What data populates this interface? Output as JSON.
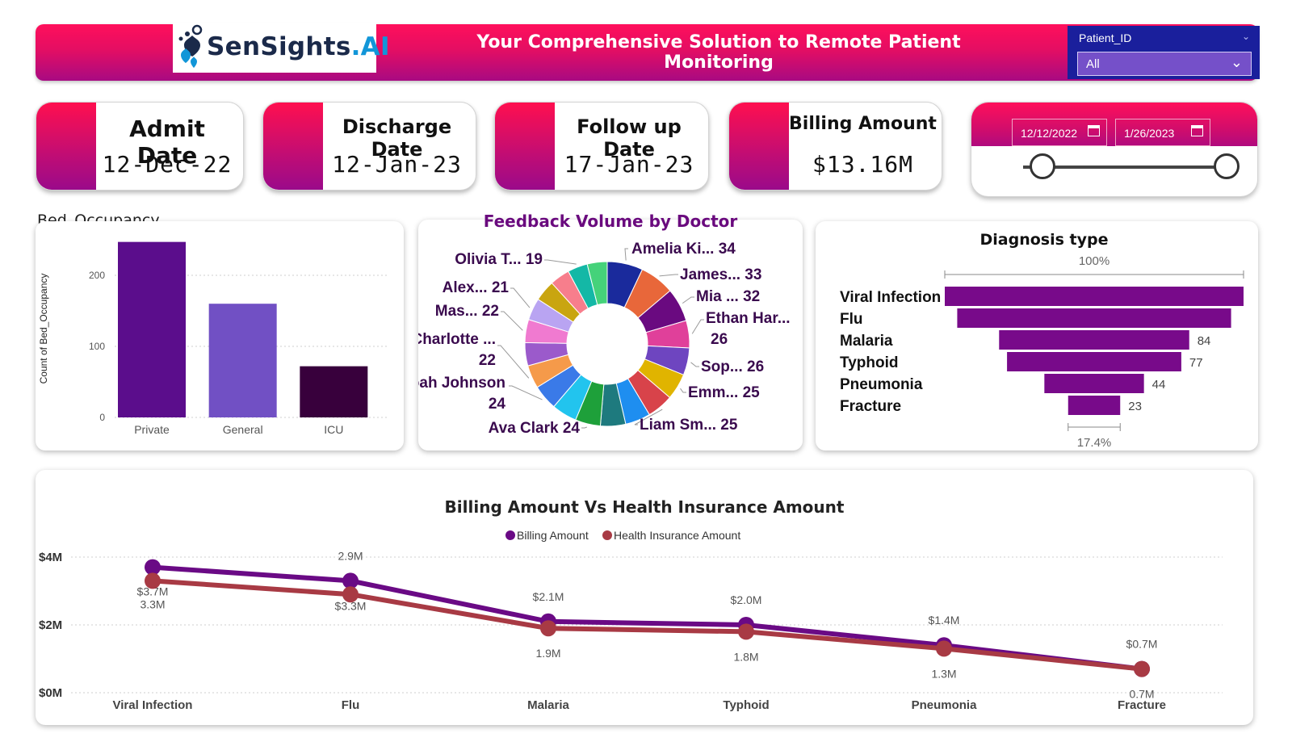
{
  "header": {
    "logo_main": "SenSights",
    "logo_suffix": ".AI",
    "tagline": "Your Comprehensive Solution to Remote Patient Monitoring",
    "brand_colors": {
      "pink": "#ff0f5b",
      "magenta": "#a80a82",
      "navy": "#1a1f9c"
    }
  },
  "filter": {
    "label": "Patient_ID",
    "value": "All"
  },
  "kpis": [
    {
      "title": "Admit Date",
      "value": "12-Dec-22"
    },
    {
      "title": "Discharge Date",
      "value": "12-Jan-23"
    },
    {
      "title": "Follow up Date",
      "value": "17-Jan-23"
    },
    {
      "title": "Billing Amount",
      "value": "$13.16M"
    }
  ],
  "date_slicer": {
    "start": "12/12/2022",
    "end": "1/26/2023",
    "range_fraction": [
      0.0,
      1.0
    ]
  },
  "chart_data": [
    {
      "type": "bar",
      "title": "Bed_Occupancy",
      "ylabel": "Count of Bed_Occupancy",
      "xlabel": "",
      "categories": [
        "Private",
        "General",
        "ICU"
      ],
      "values": [
        247,
        160,
        72
      ],
      "colors": [
        "#5b0d8c",
        "#7150c4",
        "#38003c"
      ],
      "ylim": [
        0,
        250
      ],
      "yticks": [
        0,
        100,
        200
      ],
      "grid": true
    },
    {
      "type": "pie",
      "title": "Feedback Volume by Doctor",
      "donut": true,
      "slices": [
        {
          "label": "Amelia Ki...",
          "value": 34,
          "color": "#1a2a9c"
        },
        {
          "label": "James...",
          "value": 33,
          "color": "#e8673a"
        },
        {
          "label": "Mia ...",
          "value": 32,
          "color": "#6a0a80"
        },
        {
          "label": "Ethan Har...",
          "value": 26,
          "color": "#e0409a"
        },
        {
          "label": "Sop...",
          "value": 26,
          "color": "#6e45c0"
        },
        {
          "label": "Emm...",
          "value": 25,
          "color": "#e0b400"
        },
        {
          "label": "Liam Sm...",
          "value": 25,
          "color": "#d8434a"
        },
        {
          "label": "",
          "value": 24,
          "color": "#1e8ef0"
        },
        {
          "label": "",
          "value": 24,
          "color": "#1e7a7e"
        },
        {
          "label": "Ava Clark",
          "value": 24,
          "color": "#1ea03a"
        },
        {
          "label": "",
          "value": 24,
          "color": "#22c4ee"
        },
        {
          "label": "Noah Johnson",
          "value": 24,
          "color": "#3a7ae8"
        },
        {
          "label": "Charlotte ...",
          "value": 22,
          "color": "#f59a4a"
        },
        {
          "label": "",
          "value": 22,
          "color": "#9b5acb"
        },
        {
          "label": "Mas...",
          "value": 22,
          "color": "#f07ad0"
        },
        {
          "label": "Alex...",
          "value": 21,
          "color": "#b9a4f2"
        },
        {
          "label": "",
          "value": 20,
          "color": "#c9a510"
        },
        {
          "label": "",
          "value": 19,
          "color": "#f77e8c"
        },
        {
          "label": "Olivia T...",
          "value": 19,
          "color": "#14b8a6"
        },
        {
          "label": "",
          "value": 19,
          "color": "#45d27a"
        }
      ]
    },
    {
      "type": "bar",
      "subtype": "funnel",
      "title": "Diagnosis type",
      "categories": [
        "Viral Infection",
        "Flu",
        "Malaria",
        "Typhoid",
        "Pneumonia",
        "Fracture"
      ],
      "values": [
        132,
        121,
        84,
        77,
        44,
        23
      ],
      "data_labels": [
        "",
        "",
        "84",
        "77",
        "44",
        "23"
      ],
      "top_label": "100%",
      "bottom_label": "17.4%",
      "color": "#780a8a"
    },
    {
      "type": "line",
      "title": "Billing Amount Vs Health Insurance Amount",
      "categories": [
        "Viral Infection",
        "Flu",
        "Malaria",
        "Typhoid",
        "Pneumonia",
        "Fracture"
      ],
      "ylim": [
        0,
        4
      ],
      "yticks": [
        "$0M",
        "$2M",
        "$4M"
      ],
      "legend": "top-center",
      "series": [
        {
          "name": "Billing Amount",
          "color": "#6a0a85",
          "values": [
            3.7,
            3.3,
            2.1,
            2.0,
            1.4,
            0.7
          ],
          "labels": [
            "$3.7M",
            "$3.3M",
            "$2.1M",
            "$2.0M",
            "$1.4M",
            "$0.7M"
          ]
        },
        {
          "name": "Health Insurance Amount",
          "color": "#a83a44",
          "values": [
            3.3,
            2.9,
            1.9,
            1.8,
            1.3,
            0.7
          ],
          "labels": [
            "3.3M",
            "2.9M",
            "1.9M",
            "1.8M",
            "1.3M",
            "0.7M"
          ]
        }
      ]
    }
  ]
}
